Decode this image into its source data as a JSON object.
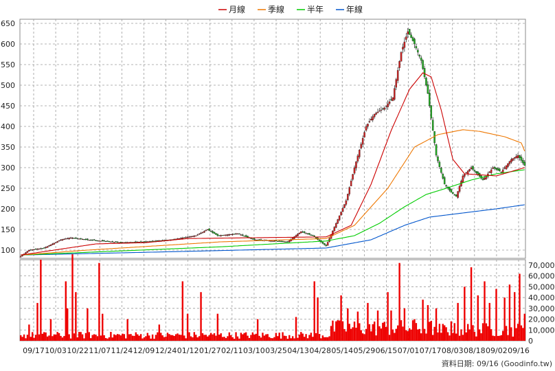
{
  "chart_data": {
    "type": "candlestick",
    "legend": {
      "placement": "top-center",
      "items": [
        {
          "name": "月線",
          "color": "#cc0000"
        },
        {
          "name": "季線",
          "color": "#ee7700"
        },
        {
          "name": "半年",
          "color": "#00cc00"
        },
        {
          "name": "年線",
          "color": "#0055cc"
        }
      ]
    },
    "price_axis": {
      "ylim": [
        80,
        660
      ],
      "ticks": [
        100,
        150,
        200,
        250,
        300,
        350,
        400,
        450,
        500,
        550,
        600,
        650
      ]
    },
    "volume_axis": {
      "ylim": [
        0,
        75000
      ],
      "ticks": [
        0,
        10000,
        20000,
        30000,
        40000,
        50000,
        60000,
        70000
      ],
      "tick_labels": [
        "0",
        "10,000",
        "20,000",
        "30,000",
        "40,000",
        "50,000",
        "60,000",
        "70,000"
      ]
    },
    "x_ticks": [
      "09/17",
      "10/03",
      "10/22",
      "11/07",
      "11/24",
      "12/09",
      "12/24",
      "01/12",
      "01/27",
      "02/11",
      "03/10",
      "03/25",
      "04/13",
      "04/28",
      "05/14",
      "05/29",
      "06/15",
      "07/01",
      "07/17",
      "08/03",
      "08/18",
      "09/02",
      "09/16"
    ],
    "price_keypoints": [
      [
        0,
        85
      ],
      [
        5,
        100
      ],
      [
        14,
        105
      ],
      [
        24,
        125
      ],
      [
        30,
        130
      ],
      [
        40,
        125
      ],
      [
        60,
        118
      ],
      [
        75,
        120
      ],
      [
        90,
        125
      ],
      [
        105,
        135
      ],
      [
        112,
        150
      ],
      [
        118,
        135
      ],
      [
        130,
        140
      ],
      [
        140,
        125
      ],
      [
        160,
        120
      ],
      [
        168,
        145
      ],
      [
        175,
        135
      ],
      [
        183,
        110
      ],
      [
        195,
        220
      ],
      [
        200,
        300
      ],
      [
        207,
        400
      ],
      [
        212,
        430
      ],
      [
        218,
        445
      ],
      [
        223,
        470
      ],
      [
        228,
        580
      ],
      [
        232,
        630
      ],
      [
        236,
        600
      ],
      [
        240,
        560
      ],
      [
        244,
        480
      ],
      [
        249,
        330
      ],
      [
        254,
        260
      ],
      [
        258,
        240
      ],
      [
        261,
        230
      ],
      [
        265,
        280
      ],
      [
        270,
        300
      ],
      [
        277,
        270
      ],
      [
        283,
        300
      ],
      [
        288,
        290
      ],
      [
        294,
        320
      ],
      [
        298,
        330
      ],
      [
        302,
        305
      ]
    ],
    "ma_month_keypoints": [
      [
        0,
        88
      ],
      [
        20,
        100
      ],
      [
        45,
        115
      ],
      [
        75,
        118
      ],
      [
        100,
        128
      ],
      [
        140,
        130
      ],
      [
        183,
        132
      ],
      [
        198,
        160
      ],
      [
        210,
        260
      ],
      [
        222,
        390
      ],
      [
        233,
        490
      ],
      [
        241,
        530
      ],
      [
        246,
        520
      ],
      [
        252,
        440
      ],
      [
        259,
        320
      ],
      [
        266,
        285
      ],
      [
        285,
        280
      ],
      [
        302,
        300
      ]
    ],
    "ma_quarter_keypoints": [
      [
        0,
        88
      ],
      [
        40,
        100
      ],
      [
        80,
        110
      ],
      [
        120,
        120
      ],
      [
        183,
        128
      ],
      [
        200,
        160
      ],
      [
        220,
        250
      ],
      [
        236,
        350
      ],
      [
        250,
        380
      ],
      [
        265,
        392
      ],
      [
        275,
        388
      ],
      [
        290,
        375
      ],
      [
        300,
        360
      ],
      [
        302,
        340
      ]
    ],
    "ma_half_keypoints": [
      [
        0,
        88
      ],
      [
        60,
        98
      ],
      [
        120,
        108
      ],
      [
        183,
        122
      ],
      [
        200,
        135
      ],
      [
        215,
        165
      ],
      [
        230,
        205
      ],
      [
        243,
        235
      ],
      [
        255,
        250
      ],
      [
        270,
        270
      ],
      [
        285,
        285
      ],
      [
        302,
        295
      ]
    ],
    "ma_year_keypoints": [
      [
        0,
        88
      ],
      [
        90,
        96
      ],
      [
        183,
        105
      ],
      [
        210,
        125
      ],
      [
        230,
        160
      ],
      [
        245,
        180
      ],
      [
        265,
        190
      ],
      [
        285,
        200
      ],
      [
        302,
        210
      ]
    ],
    "volume_spikes": [
      [
        5,
        15000
      ],
      [
        10,
        35000
      ],
      [
        12,
        75000
      ],
      [
        18,
        20000
      ],
      [
        27,
        55000
      ],
      [
        28,
        30000
      ],
      [
        31,
        80000
      ],
      [
        33,
        45000
      ],
      [
        40,
        30000
      ],
      [
        47,
        72000
      ],
      [
        49,
        25000
      ],
      [
        64,
        20000
      ],
      [
        83,
        15000
      ],
      [
        97,
        55000
      ],
      [
        100,
        25000
      ],
      [
        108,
        45000
      ],
      [
        118,
        25000
      ],
      [
        142,
        20000
      ],
      [
        165,
        22000
      ],
      [
        176,
        55000
      ],
      [
        178,
        40000
      ],
      [
        189,
        18000
      ],
      [
        192,
        42000
      ],
      [
        196,
        30000
      ],
      [
        202,
        27000
      ],
      [
        208,
        35000
      ],
      [
        214,
        28000
      ],
      [
        220,
        45000
      ],
      [
        222,
        28000
      ],
      [
        227,
        72000
      ],
      [
        230,
        30000
      ],
      [
        236,
        20000
      ],
      [
        241,
        38000
      ],
      [
        244,
        33000
      ],
      [
        249,
        30000
      ],
      [
        258,
        18000
      ],
      [
        262,
        35000
      ],
      [
        266,
        50000
      ],
      [
        270,
        68000
      ],
      [
        274,
        42000
      ],
      [
        278,
        55000
      ],
      [
        281,
        35000
      ],
      [
        285,
        48000
      ],
      [
        290,
        40000
      ],
      [
        293,
        52000
      ],
      [
        296,
        45000
      ],
      [
        299,
        62000
      ],
      [
        302,
        25000
      ]
    ],
    "footer_text": "資料日期: 09/16  (Goodinfo.tw)"
  }
}
